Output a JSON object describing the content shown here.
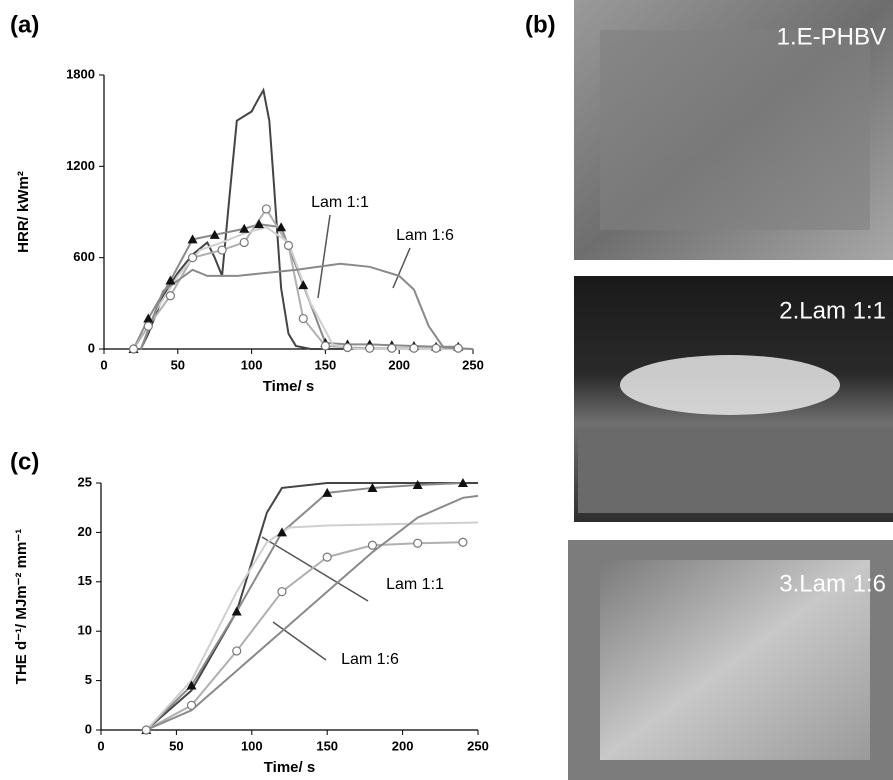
{
  "chart_data": [
    {
      "type": "line",
      "panel_label": "(a)",
      "xlabel": "Time/ s",
      "ylabel": "HRR/ kWm²",
      "xlim": [
        0,
        250
      ],
      "xticks": [
        0,
        50,
        100,
        150,
        200,
        250
      ],
      "ylim": [
        0,
        1800
      ],
      "yticks": [
        0,
        600,
        1200,
        1800
      ],
      "annotations": [
        "Lam 1:1",
        "Lam 1:6"
      ],
      "series": [
        {
          "color": "#444444",
          "marker": null,
          "x": [
            25,
            30,
            40,
            50,
            60,
            70,
            75,
            80,
            85,
            90,
            100,
            105,
            108,
            112,
            115,
            120,
            125,
            130,
            140,
            250
          ],
          "values": [
            0,
            100,
            350,
            500,
            620,
            700,
            600,
            480,
            1000,
            1500,
            1560,
            1650,
            1700,
            1500,
            1100,
            400,
            100,
            20,
            0,
            0
          ]
        },
        {
          "color": "#8a8a8a",
          "marker": "triangle",
          "x": [
            20,
            30,
            45,
            60,
            75,
            95,
            105,
            120,
            135,
            150,
            165,
            180,
            195,
            210,
            225,
            240
          ],
          "values": [
            0,
            200,
            450,
            720,
            750,
            790,
            820,
            800,
            420,
            40,
            30,
            30,
            25,
            20,
            15,
            15
          ]
        },
        {
          "color": "#b0b0b0",
          "marker": "circle",
          "x": [
            20,
            30,
            45,
            60,
            80,
            95,
            110,
            125,
            135,
            150,
            165,
            180,
            195,
            210,
            225,
            240
          ],
          "values": [
            0,
            150,
            350,
            600,
            650,
            700,
            920,
            680,
            200,
            20,
            10,
            5,
            5,
            5,
            5,
            5
          ]
        },
        {
          "color": "#cfcfcf",
          "marker": null,
          "x": [
            25,
            35,
            50,
            65,
            80,
            95,
            110,
            125,
            140,
            155,
            170,
            250
          ],
          "values": [
            0,
            250,
            480,
            650,
            700,
            760,
            800,
            700,
            300,
            30,
            0,
            0
          ]
        },
        {
          "color": "#8a8a8a",
          "marker": null,
          "x": [
            25,
            40,
            60,
            70,
            90,
            110,
            130,
            160,
            180,
            200,
            210,
            220,
            230,
            250
          ],
          "values": [
            0,
            380,
            520,
            480,
            480,
            500,
            520,
            560,
            540,
            480,
            390,
            150,
            10,
            0
          ]
        }
      ]
    },
    {
      "type": "line",
      "panel_label": "(c)",
      "xlabel": "Time/ s",
      "ylabel": "THE d⁻¹/ MJm⁻² mm⁻¹",
      "xlim": [
        0,
        250
      ],
      "xticks": [
        0,
        50,
        100,
        150,
        200,
        250
      ],
      "ylim": [
        0,
        25
      ],
      "yticks": [
        0,
        5,
        10,
        15,
        20,
        25
      ],
      "annotations": [
        "Lam 1:1",
        "Lam 1:6"
      ],
      "series": [
        {
          "color": "#444444",
          "marker": null,
          "x": [
            30,
            60,
            90,
            110,
            120,
            150,
            250
          ],
          "values": [
            0,
            4,
            12,
            22,
            24.5,
            25,
            25
          ]
        },
        {
          "color": "#8a8a8a",
          "marker": "triangle",
          "x": [
            30,
            60,
            90,
            120,
            150,
            180,
            210,
            240
          ],
          "values": [
            0,
            4.5,
            12,
            20,
            24,
            24.5,
            24.8,
            25
          ]
        },
        {
          "color": "#cfcfcf",
          "marker": null,
          "x": [
            30,
            60,
            90,
            110,
            125,
            150,
            250
          ],
          "values": [
            0,
            5,
            14,
            19,
            20.5,
            20.7,
            21
          ]
        },
        {
          "color": "#b0b0b0",
          "marker": "circle",
          "x": [
            30,
            60,
            90,
            120,
            150,
            180,
            210,
            240
          ],
          "values": [
            0,
            2.5,
            8,
            14,
            17.5,
            18.7,
            18.9,
            19
          ]
        },
        {
          "color": "#8a8a8a",
          "marker": null,
          "x": [
            30,
            60,
            90,
            120,
            150,
            180,
            210,
            240,
            250
          ],
          "values": [
            0,
            2,
            6,
            10,
            14,
            18,
            21.5,
            23.5,
            23.7
          ]
        }
      ]
    }
  ],
  "figure_b": {
    "panel_label": "(b)",
    "photos": [
      "1.E-PHBV",
      "2.Lam 1:1",
      "3.Lam 1:6"
    ]
  }
}
